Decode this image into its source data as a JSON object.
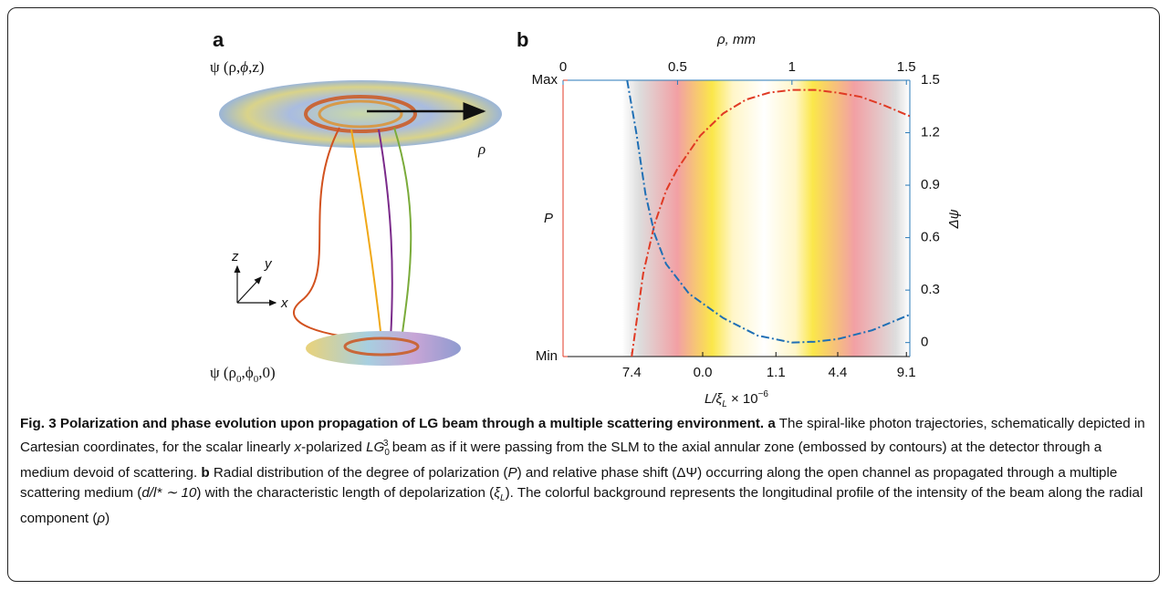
{
  "panel_a": {
    "label": "a",
    "top_field": [
      "ψ (ρ,",
      "ϕ",
      ",z)"
    ],
    "radius_label": "ρ",
    "axis_z": "z",
    "axis_y": "y",
    "axis_x": "x",
    "bottom_field": [
      "ψ (ρ",
      "0",
      ",ϕ",
      "0",
      ",0)"
    ]
  },
  "chart_data": {
    "type": "line",
    "panel_label": "b",
    "x_label_top": "ρ, mm",
    "x_label_bottom": [
      "L/ξ",
      "L",
      " × 10",
      "−6"
    ],
    "y_label": "P",
    "y2_label": "Δψ",
    "xlim": [
      0,
      1.515
    ],
    "xticks": [
      0,
      0.5,
      1,
      1.5
    ],
    "x2ticks": [
      {
        "value": 0.3,
        "label": "7.4"
      },
      {
        "value": 0.61,
        "label": "0.0"
      },
      {
        "value": 0.93,
        "label": "1.1"
      },
      {
        "value": 1.2,
        "label": "4.4"
      },
      {
        "value": 1.5,
        "label": "9.1"
      }
    ],
    "ylim": [
      0,
      1
    ],
    "yticks": [
      {
        "value": 1,
        "label": "Max"
      },
      {
        "value": 0,
        "label": "Min"
      }
    ],
    "y2lim": [
      -0.08,
      1.5
    ],
    "y2ticks": [
      0,
      0.3,
      0.6,
      0.9,
      1.2,
      1.5
    ],
    "series": [
      {
        "color": "#e03a24",
        "x": [
          0.3,
          0.35,
          0.4,
          0.45,
          0.5,
          0.6,
          0.7,
          0.8,
          0.9,
          1.0,
          1.1,
          1.2,
          1.3,
          1.4,
          1.515
        ],
        "values": [
          0.0,
          0.3,
          0.48,
          0.6,
          0.68,
          0.8,
          0.88,
          0.93,
          0.955,
          0.965,
          0.965,
          0.955,
          0.94,
          0.91,
          0.87
        ]
      },
      {
        "color": "#1f6fb5",
        "axis": "y2",
        "x": [
          0.28,
          0.32,
          0.36,
          0.4,
          0.45,
          0.55,
          0.7,
          0.85,
          1.0,
          1.1,
          1.2,
          1.35,
          1.515
        ],
        "values": [
          1.5,
          1.2,
          0.85,
          0.62,
          0.45,
          0.28,
          0.14,
          0.04,
          0.0,
          0.005,
          0.02,
          0.07,
          0.16
        ]
      }
    ]
  },
  "caption": [
    "Fig. 3 Polarization and phase evolution upon propagation of LG beam through a multiple scattering environment.",
    "a",
    "The spiral-like photon trajectories, schematically depicted in Cartesian coordinates, for the scalar linearly",
    "x",
    "-polarized",
    "LG",
    "0",
    "3",
    "beam as if it were passing from the SLM to the axial annular zone (embossed by contours) at the detector through a medium devoid of scattering.",
    "b",
    "Radial distribution of the degree of polarization (",
    "P",
    ") and relative phase shift (ΔΨ) occurring along the open channel as propagated through a multiple scattering medium (",
    "d/l* ∼ 10",
    ") with the characteristic length of depolarization (",
    "ξ",
    "L",
    "). The colorful background represents the longitudinal profile of the intensity of the beam along the radial component (",
    "ρ",
    ")"
  ]
}
